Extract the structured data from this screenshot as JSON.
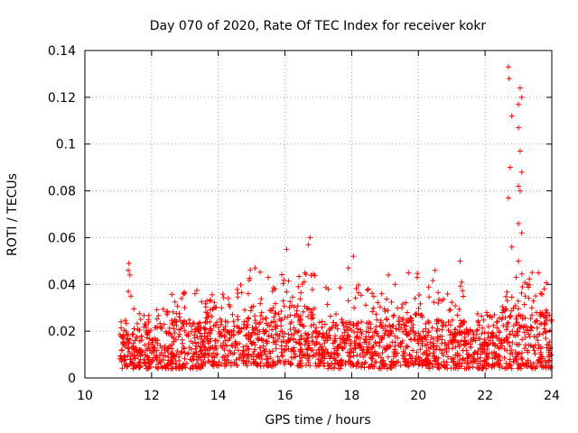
{
  "chart_data": {
    "type": "scatter",
    "title": "Day 070 of 2020, Rate Of TEC Index for receiver kokr",
    "xlabel": "GPS time / hours",
    "ylabel": "ROTI / TECUs",
    "xlim": [
      10,
      24
    ],
    "ylim": [
      0,
      0.14
    ],
    "x_ticks": [
      10,
      12,
      14,
      16,
      18,
      20,
      22,
      24
    ],
    "x_tick_labels": [
      "10",
      "12",
      "14",
      "16",
      "18",
      "20",
      "22",
      "24"
    ],
    "y_ticks": [
      0,
      0.02,
      0.04,
      0.06,
      0.08,
      0.1,
      0.12,
      0.14
    ],
    "y_tick_labels": [
      "0",
      "0.02",
      "0.04",
      "0.06",
      "0.08",
      "0.1",
      "0.12",
      "0.14"
    ],
    "grid": true,
    "marker": "+",
    "marker_color": "#ff0000",
    "series": [
      {
        "name": "ROTI",
        "points": [
          [
            11.1,
            0.012
          ],
          [
            11.2,
            0.009
          ],
          [
            11.3,
            0.046
          ],
          [
            11.32,
            0.049
          ],
          [
            11.35,
            0.044
          ],
          [
            11.3,
            0.037
          ],
          [
            11.38,
            0.035
          ],
          [
            11.5,
            0.016
          ],
          [
            11.7,
            0.011
          ],
          [
            11.9,
            0.02
          ],
          [
            12.1,
            0.013
          ],
          [
            12.3,
            0.022
          ],
          [
            12.5,
            0.009
          ],
          [
            12.7,
            0.025
          ],
          [
            12.9,
            0.034
          ],
          [
            13.1,
            0.018
          ],
          [
            13.3,
            0.036
          ],
          [
            13.5,
            0.012
          ],
          [
            13.7,
            0.027
          ],
          [
            13.9,
            0.016
          ],
          [
            14.1,
            0.03
          ],
          [
            14.3,
            0.034
          ],
          [
            14.5,
            0.014
          ],
          [
            14.7,
            0.021
          ],
          [
            14.9,
            0.036
          ],
          [
            15.1,
            0.047
          ],
          [
            15.3,
            0.028
          ],
          [
            15.5,
            0.043
          ],
          [
            15.7,
            0.038
          ],
          [
            15.9,
            0.025
          ],
          [
            16.05,
            0.055
          ],
          [
            16.2,
            0.031
          ],
          [
            16.4,
            0.039
          ],
          [
            16.6,
            0.045
          ],
          [
            16.75,
            0.06
          ],
          [
            16.7,
            0.057
          ],
          [
            16.9,
            0.02
          ],
          [
            17.1,
            0.012
          ],
          [
            17.3,
            0.038
          ],
          [
            17.5,
            0.018
          ],
          [
            17.7,
            0.025
          ],
          [
            17.9,
            0.047
          ],
          [
            18.05,
            0.052
          ],
          [
            18.2,
            0.017
          ],
          [
            18.5,
            0.038
          ],
          [
            18.7,
            0.02
          ],
          [
            18.9,
            0.036
          ],
          [
            19.1,
            0.044
          ],
          [
            19.3,
            0.04
          ],
          [
            19.5,
            0.03
          ],
          [
            19.7,
            0.045
          ],
          [
            19.9,
            0.034
          ],
          [
            20.1,
            0.027
          ],
          [
            20.3,
            0.02
          ],
          [
            20.5,
            0.046
          ],
          [
            20.7,
            0.033
          ],
          [
            20.9,
            0.024
          ],
          [
            21.1,
            0.016
          ],
          [
            21.25,
            0.05
          ],
          [
            21.3,
            0.041
          ],
          [
            21.5,
            0.015
          ],
          [
            21.7,
            0.011
          ],
          [
            21.9,
            0.019
          ],
          [
            22.1,
            0.022
          ],
          [
            22.3,
            0.014
          ],
          [
            22.5,
            0.025
          ],
          [
            22.7,
            0.133
          ],
          [
            22.72,
            0.128
          ],
          [
            22.8,
            0.112
          ],
          [
            22.75,
            0.09
          ],
          [
            22.7,
            0.077
          ],
          [
            22.8,
            0.056
          ],
          [
            23.0,
            0.117
          ],
          [
            23.05,
            0.124
          ],
          [
            23.1,
            0.12
          ],
          [
            23.0,
            0.107
          ],
          [
            23.05,
            0.097
          ],
          [
            23.1,
            0.088
          ],
          [
            23.0,
            0.082
          ],
          [
            23.05,
            0.08
          ],
          [
            23.0,
            0.066
          ],
          [
            23.1,
            0.062
          ],
          [
            23.0,
            0.05
          ],
          [
            23.2,
            0.035
          ],
          [
            23.4,
            0.03
          ],
          [
            23.6,
            0.045
          ],
          [
            23.7,
            0.027
          ],
          [
            23.8,
            0.02
          ],
          [
            23.9,
            0.014
          ]
        ],
        "bands": [
          {
            "x": [
              11.05,
              11.45
            ],
            "base": [
              0.004,
              0.019
            ],
            "spikes": 0.028
          },
          {
            "x": [
              11.45,
              12.5
            ],
            "base": [
              0.004,
              0.022
            ],
            "spikes": 0.03
          },
          {
            "x": [
              12.5,
              13.5
            ],
            "base": [
              0.004,
              0.025
            ],
            "spikes": 0.038
          },
          {
            "x": [
              13.5,
              14.5
            ],
            "base": [
              0.005,
              0.026
            ],
            "spikes": 0.036
          },
          {
            "x": [
              14.5,
              15.5
            ],
            "base": [
              0.005,
              0.027
            ],
            "spikes": 0.047
          },
          {
            "x": [
              15.5,
              16.9
            ],
            "base": [
              0.005,
              0.03
            ],
            "spikes": 0.045
          },
          {
            "x": [
              16.9,
              17.2
            ],
            "base": [
              0.005,
              0.02
            ],
            "spikes": 0.025
          },
          {
            "x": [
              17.2,
              18.3
            ],
            "base": [
              0.004,
              0.024
            ],
            "spikes": 0.04
          },
          {
            "x": [
              18.3,
              19.2
            ],
            "base": [
              0.004,
              0.026
            ],
            "spikes": 0.038
          },
          {
            "x": [
              19.2,
              20.3
            ],
            "base": [
              0.005,
              0.028
            ],
            "spikes": 0.045
          },
          {
            "x": [
              20.3,
              21.4
            ],
            "base": [
              0.004,
              0.025
            ],
            "spikes": 0.042
          },
          {
            "x": [
              21.4,
              22.5
            ],
            "base": [
              0.004,
              0.021
            ],
            "spikes": 0.028
          },
          {
            "x": [
              22.5,
              23.3
            ],
            "base": [
              0.004,
              0.03
            ],
            "spikes": 0.045
          },
          {
            "x": [
              23.3,
              24.0
            ],
            "base": [
              0.004,
              0.03
            ],
            "spikes": 0.046
          }
        ]
      }
    ]
  }
}
